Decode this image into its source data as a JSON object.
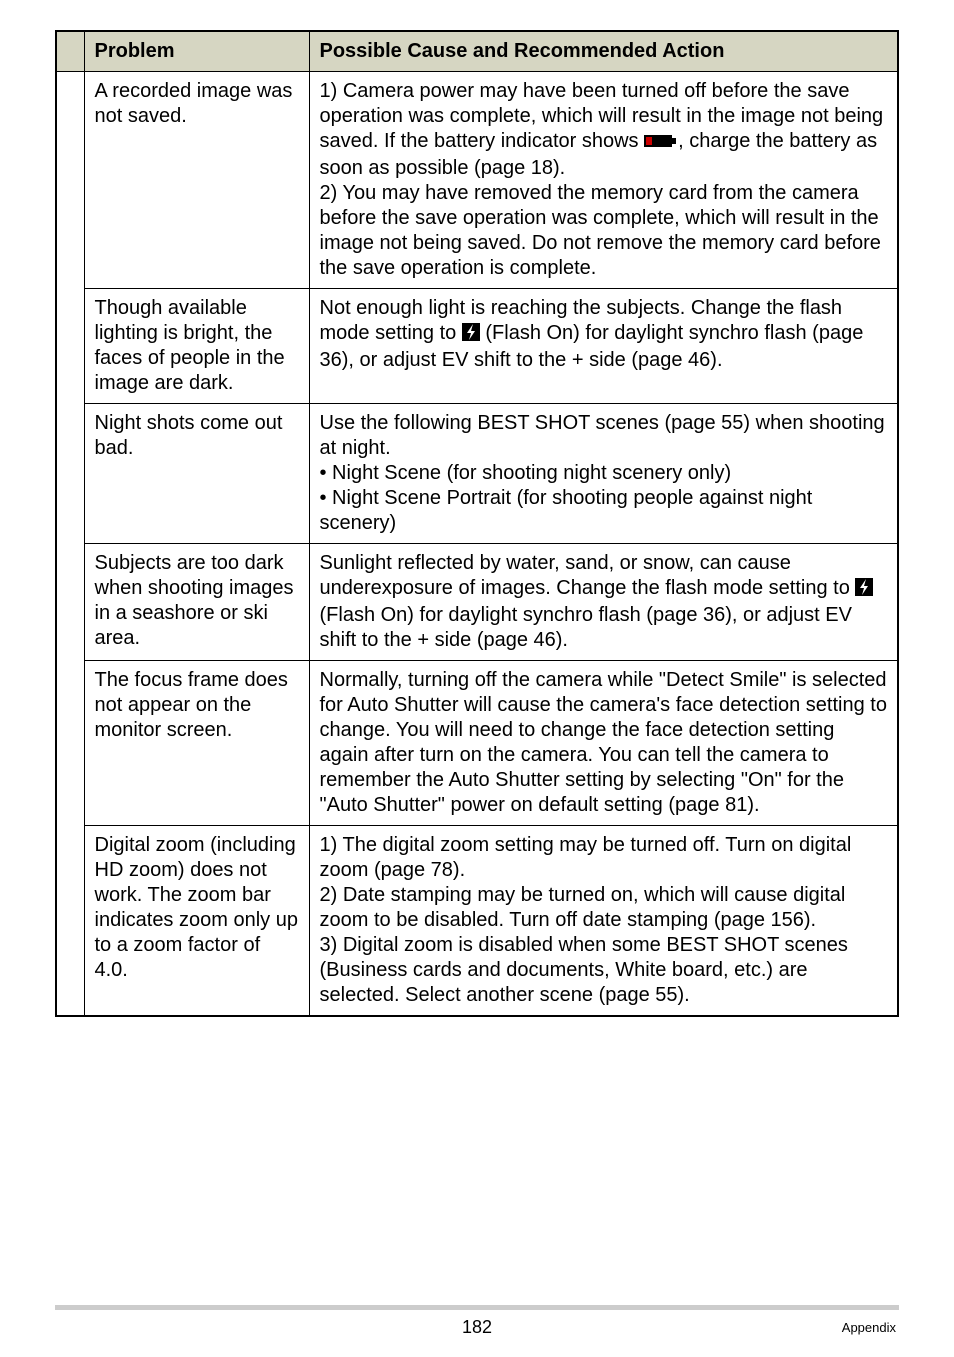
{
  "header": {
    "col1": "Problem",
    "col2": "Possible Cause and Recommended Action"
  },
  "rows": [
    {
      "problem": "A recorded image was not saved.",
      "action_parts": [
        {
          "t": "text",
          "v": "1) Camera power may have been turned off before the save operation was complete, which will result in the image not being saved. If the battery indicator shows "
        },
        {
          "t": "batt"
        },
        {
          "t": "text",
          "v": ", charge the battery as soon as possible (page 18)."
        },
        {
          "t": "br"
        },
        {
          "t": "text",
          "v": "2) You may have removed the memory card from the camera before the save operation was complete, which will result in the image not being saved. Do not remove the memory card before the save operation is complete."
        }
      ]
    },
    {
      "problem": "Though available lighting is bright, the faces of people in the image are dark.",
      "action_parts": [
        {
          "t": "text",
          "v": "Not enough light is reaching the subjects. Change the flash mode setting to "
        },
        {
          "t": "flash"
        },
        {
          "t": "text",
          "v": " (Flash On) for daylight synchro flash (page 36), or adjust EV shift to the + side (page 46)."
        }
      ]
    },
    {
      "problem": "Night shots come out bad.",
      "action_parts": [
        {
          "t": "text",
          "v": "Use the following BEST SHOT scenes (page 55) when shooting at night."
        },
        {
          "t": "br"
        },
        {
          "t": "text",
          "v": "• Night Scene (for shooting night scenery only)"
        },
        {
          "t": "br"
        },
        {
          "t": "text",
          "v": "• Night Scene Portrait (for shooting people against night scenery)"
        }
      ]
    },
    {
      "problem": "Subjects are too dark when shooting images in a seashore or ski area.",
      "action_parts": [
        {
          "t": "text",
          "v": "Sunlight reflected by water, sand, or snow, can cause underexposure of images. Change the flash mode setting to "
        },
        {
          "t": "flash"
        },
        {
          "t": "text",
          "v": " (Flash On) for daylight synchro flash (page 36), or adjust EV shift to the + side (page 46)."
        }
      ]
    },
    {
      "problem": "The focus frame does not appear on the monitor screen.",
      "action_parts": [
        {
          "t": "text",
          "v": "Normally, turning off the camera while \"Detect Smile\" is selected for Auto Shutter will cause the camera's face detection setting to change. You will need to change the face detection setting again after turn on the camera. You can tell the camera to remember the Auto Shutter setting by selecting \"On\" for the \"Auto Shutter\" power on default setting (page 81)."
        }
      ]
    },
    {
      "problem": "Digital zoom (including HD zoom) does not work. The zoom bar indicates zoom only up to a zoom factor of 4.0.",
      "action_parts": [
        {
          "t": "text",
          "v": "1) The digital zoom setting may be turned off. Turn on digital zoom (page 78)."
        },
        {
          "t": "br"
        },
        {
          "t": "text",
          "v": "2) Date stamping may be turned on, which will cause digital zoom to be disabled. Turn off date stamping (page 156)."
        },
        {
          "t": "br"
        },
        {
          "t": "text",
          "v": "3) Digital zoom is disabled when some BEST SHOT scenes (Business cards and documents, White board, etc.) are selected. Select another scene (page 55)."
        }
      ]
    }
  ],
  "footer": {
    "page": "182",
    "section": "Appendix"
  },
  "colors": {
    "header_bg": "#d6d6c2",
    "footer_line": "#cccccc",
    "batt_red": "#cc0000"
  }
}
